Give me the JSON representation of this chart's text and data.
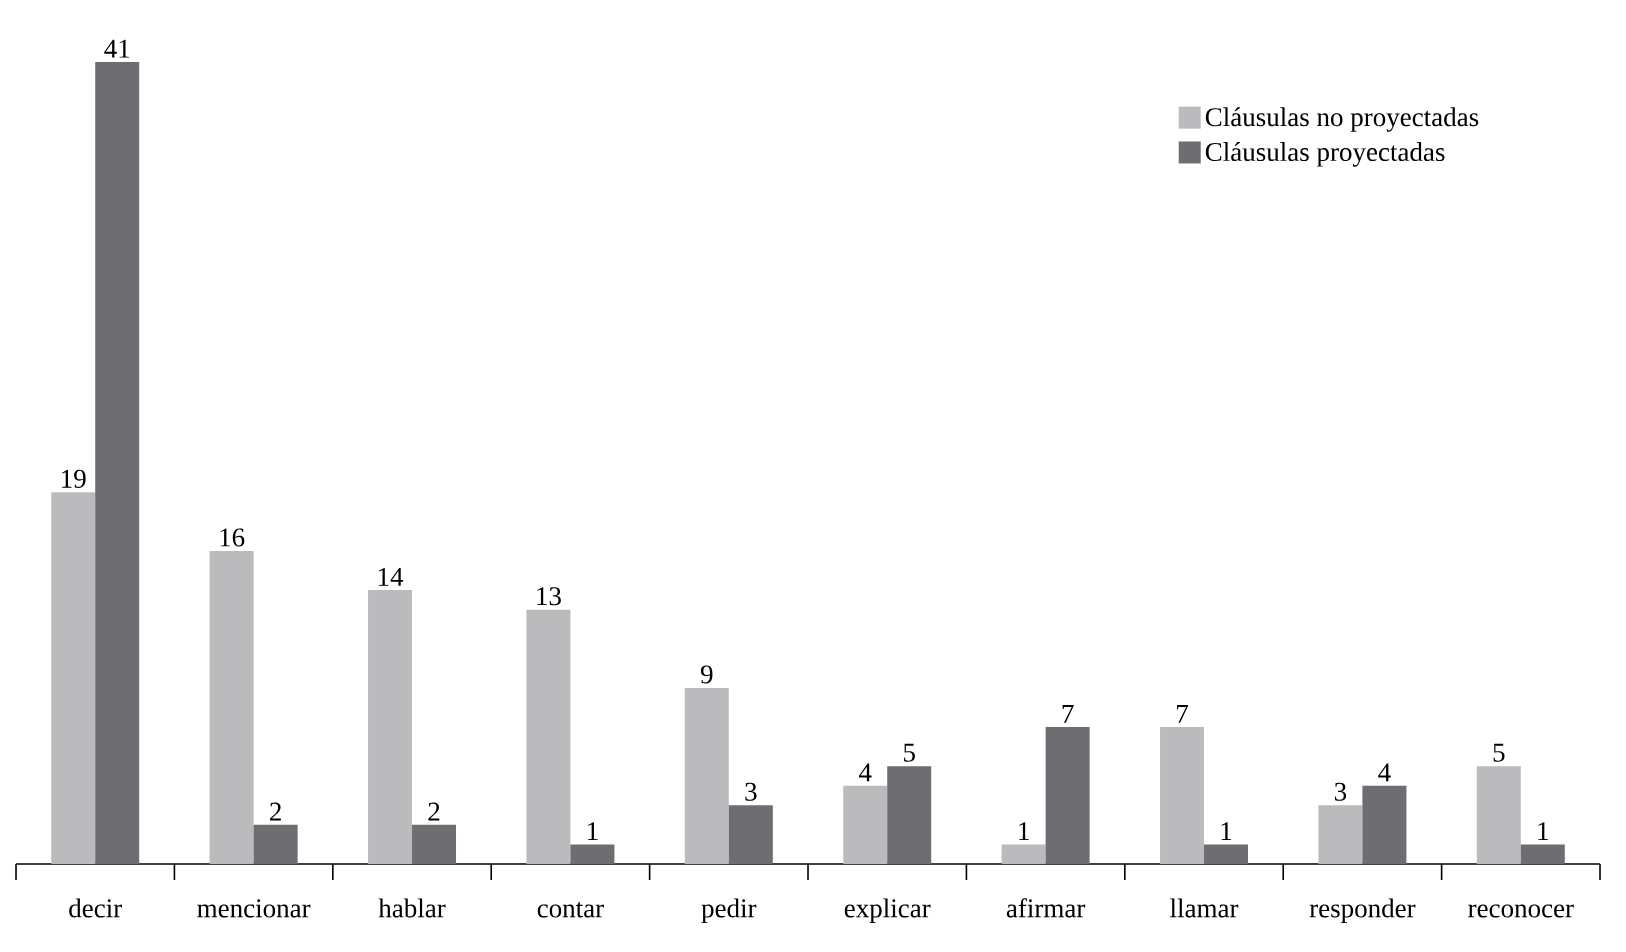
{
  "chart_data": {
    "type": "bar",
    "categories": [
      "decir",
      "mencionar",
      "hablar",
      "contar",
      "pedir",
      "explicar",
      "afirmar",
      "llamar",
      "responder",
      "reconocer"
    ],
    "series": [
      {
        "name": "Cláusulas no proyectadas",
        "color": "#bbbbbe",
        "values": [
          19,
          16,
          14,
          13,
          9,
          4,
          1,
          7,
          3,
          5
        ]
      },
      {
        "name": "Cláusulas proyectadas",
        "color": "#6d6d72",
        "values": [
          41,
          2,
          2,
          1,
          3,
          5,
          7,
          1,
          4,
          1
        ]
      }
    ],
    "data_labels": true,
    "legend": "top right"
  }
}
